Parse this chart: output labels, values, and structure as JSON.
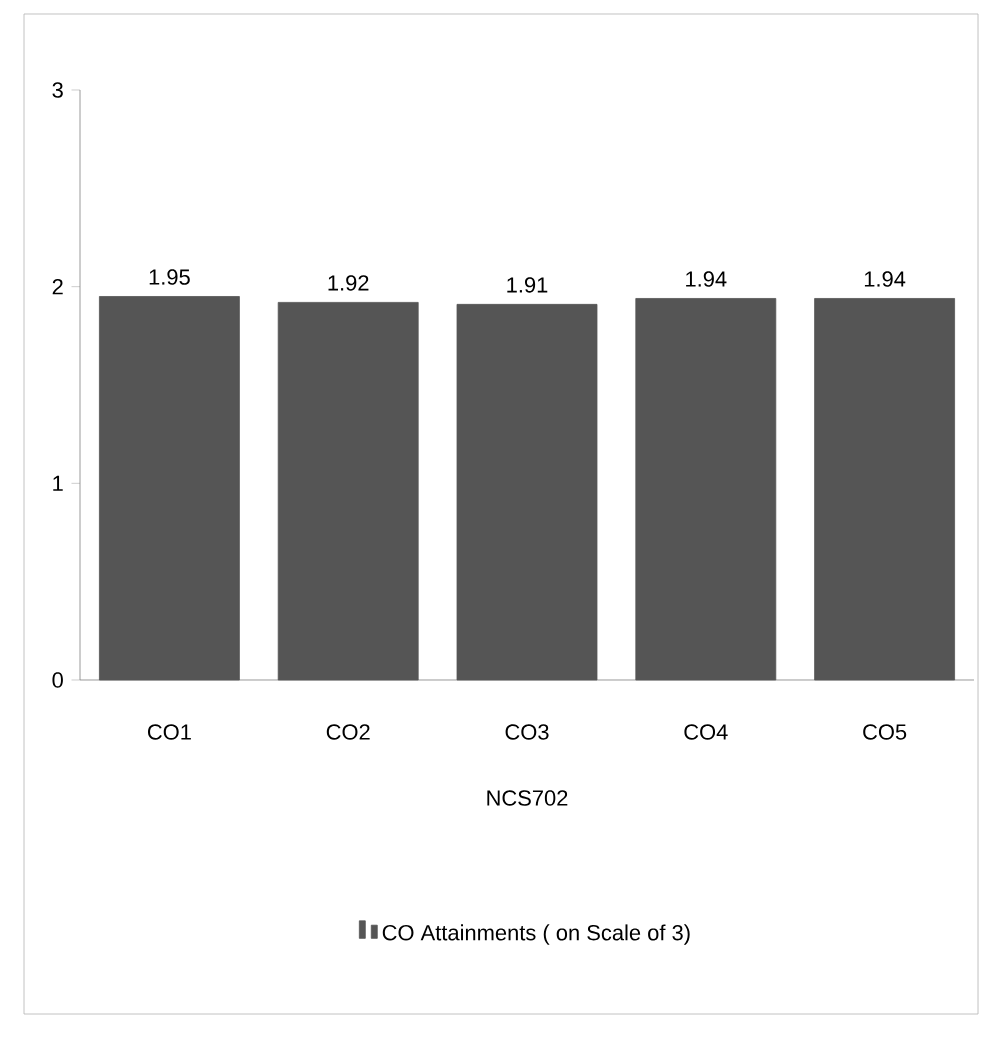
{
  "chart_data": {
    "type": "bar",
    "xlabel": "NCS702",
    "categories": [
      "CO1",
      "CO2",
      "CO3",
      "CO4",
      "CO5"
    ],
    "series": [
      {
        "name": "CO Attainments ( on Scale of 3)",
        "color": "#555555",
        "values": [
          1.95,
          1.92,
          1.91,
          1.94,
          1.94
        ]
      }
    ],
    "ylim": [
      0,
      3
    ],
    "yticks": [
      0,
      1,
      2,
      3
    ],
    "data_labels": true,
    "grid": false,
    "legend": "bottom"
  }
}
